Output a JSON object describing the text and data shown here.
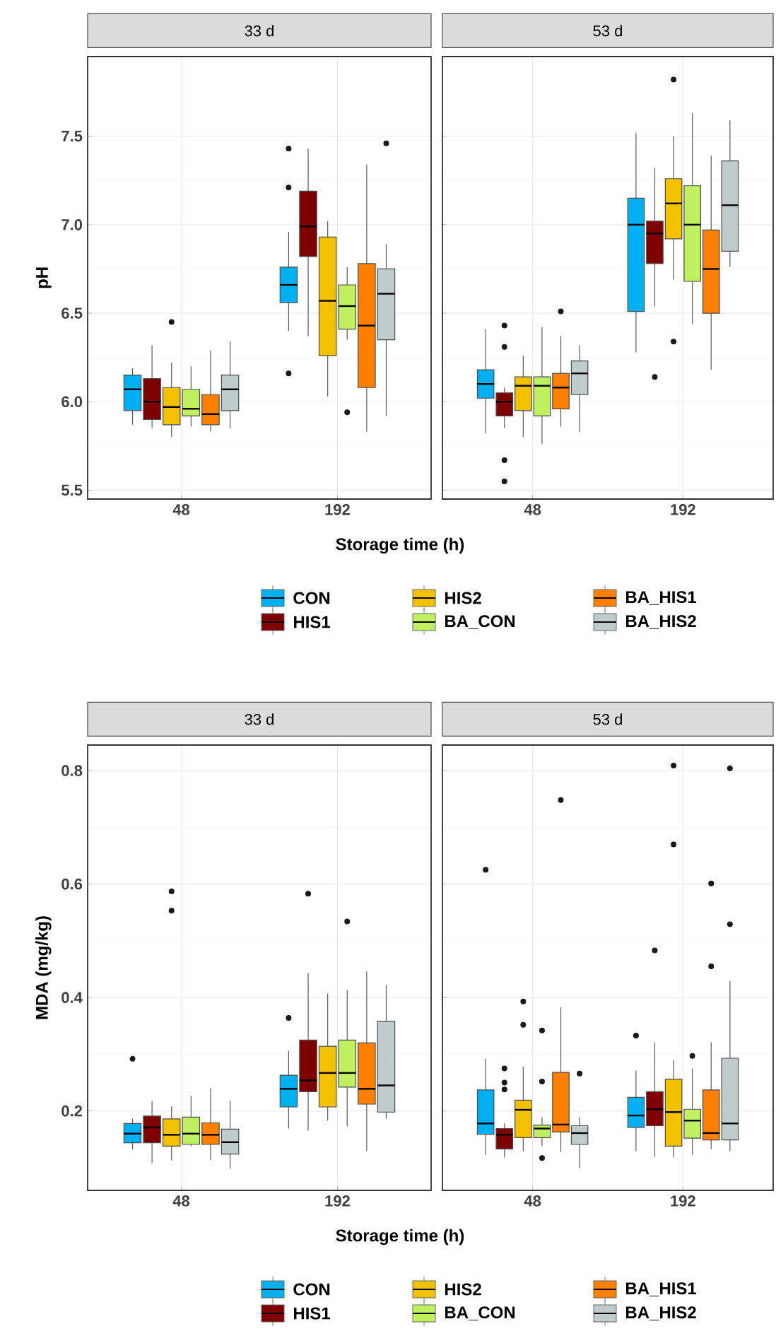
{
  "chart_data": [
    {
      "type": "box",
      "title": "33 d",
      "xlabel": "Storage time (h)",
      "ylabel": "pH",
      "categories": [
        "48",
        "192"
      ],
      "ylim": [
        5.45,
        7.95
      ],
      "yticks": [
        5.5,
        {
          "value": 6,
          "label": "6.0"
        },
        6.5,
        {
          "value": 7,
          "label": "7.0"
        },
        7.5
      ],
      "grid": true,
      "legend": "bottom",
      "series": [
        {
          "name": "CON",
          "color": "#00b0f0",
          "boxes": [
            {
              "low": 5.87,
              "q1": 5.95,
              "median": 6.07,
              "q3": 6.15,
              "high": 6.19
            },
            {
              "low": 6.4,
              "q1": 6.56,
              "median": 6.66,
              "q3": 6.76,
              "high": 6.96,
              "outliers": [
                7.43,
                7.21,
                6.16
              ]
            }
          ]
        },
        {
          "name": "HIS1",
          "color": "#7f0000",
          "boxes": [
            {
              "low": 5.85,
              "q1": 5.9,
              "median": 6.0,
              "q3": 6.13,
              "high": 6.32
            },
            {
              "low": 6.37,
              "q1": 6.82,
              "median": 6.99,
              "q3": 7.19,
              "high": 7.43
            }
          ]
        },
        {
          "name": "HIS2",
          "color": "#f2c200",
          "boxes": [
            {
              "low": 5.8,
              "q1": 5.87,
              "median": 5.97,
              "q3": 6.08,
              "high": 6.22,
              "outliers": [
                6.45
              ]
            },
            {
              "low": 6.03,
              "q1": 6.26,
              "median": 6.57,
              "q3": 6.93,
              "high": 7.02
            }
          ]
        },
        {
          "name": "BA_CON",
          "color": "#c0f060",
          "boxes": [
            {
              "low": 5.86,
              "q1": 5.92,
              "median": 5.96,
              "q3": 6.07,
              "high": 6.2
            },
            {
              "low": 6.35,
              "q1": 6.41,
              "median": 6.54,
              "q3": 6.66,
              "high": 6.76,
              "outliers": [
                5.94
              ]
            }
          ]
        },
        {
          "name": "BA_HIS1",
          "color": "#ff7f00",
          "boxes": [
            {
              "low": 5.83,
              "q1": 5.87,
              "median": 5.93,
              "q3": 6.04,
              "high": 6.29
            },
            {
              "low": 5.83,
              "q1": 6.08,
              "median": 6.43,
              "q3": 6.78,
              "high": 7.34
            }
          ]
        },
        {
          "name": "BA_HIS2",
          "color": "#c0cccc",
          "boxes": [
            {
              "low": 5.85,
              "q1": 5.95,
              "median": 6.07,
              "q3": 6.15,
              "high": 6.34
            },
            {
              "low": 5.92,
              "q1": 6.35,
              "median": 6.61,
              "q3": 6.75,
              "high": 6.89,
              "outliers": [
                7.46
              ]
            }
          ]
        }
      ]
    },
    {
      "type": "box",
      "title": "53 d",
      "categories": [
        "48",
        "192"
      ],
      "ylim": [
        5.45,
        7.95
      ],
      "yticks": [
        5.5,
        6,
        6.5,
        7,
        7.5
      ],
      "grid": true,
      "tick_labels": "x",
      "series": [
        {
          "color": "#00b0f0",
          "boxes": [
            {
              "low": 5.82,
              "q1": 6.02,
              "median": 6.1,
              "q3": 6.18,
              "high": 6.41
            },
            {
              "low": 6.28,
              "q1": 6.51,
              "median": 7.0,
              "q3": 7.15,
              "high": 7.52
            }
          ]
        },
        {
          "color": "#7f0000",
          "boxes": [
            {
              "low": 5.85,
              "q1": 5.92,
              "median": 6.0,
              "q3": 6.05,
              "high": 6.08,
              "outliers": [
                6.43,
                6.31,
                5.67,
                5.55
              ]
            },
            {
              "low": 6.54,
              "q1": 6.78,
              "median": 6.95,
              "q3": 7.02,
              "high": 7.32,
              "outliers": [
                6.14
              ]
            }
          ]
        },
        {
          "color": "#f2c200",
          "boxes": [
            {
              "low": 5.8,
              "q1": 5.95,
              "median": 6.09,
              "q3": 6.14,
              "high": 6.26
            },
            {
              "low": 6.69,
              "q1": 6.92,
              "median": 7.12,
              "q3": 7.26,
              "high": 7.5,
              "outliers": [
                7.82,
                6.34
              ]
            }
          ]
        },
        {
          "color": "#c0f060",
          "boxes": [
            {
              "low": 5.76,
              "q1": 5.92,
              "median": 6.09,
              "q3": 6.14,
              "high": 6.42
            },
            {
              "low": 6.44,
              "q1": 6.68,
              "median": 7.0,
              "q3": 7.22,
              "high": 7.63
            }
          ]
        },
        {
          "color": "#ff7f00",
          "boxes": [
            {
              "low": 5.86,
              "q1": 5.96,
              "median": 6.08,
              "q3": 6.16,
              "high": 6.37,
              "outliers": [
                6.51
              ]
            },
            {
              "low": 6.18,
              "q1": 6.5,
              "median": 6.75,
              "q3": 6.97,
              "high": 7.39
            }
          ]
        },
        {
          "color": "#c0cccc",
          "boxes": [
            {
              "low": 5.83,
              "q1": 6.04,
              "median": 6.16,
              "q3": 6.23,
              "high": 6.32
            },
            {
              "low": 6.76,
              "q1": 6.85,
              "median": 7.11,
              "q3": 7.36,
              "high": 7.59
            }
          ]
        }
      ]
    },
    {
      "type": "box",
      "title": "33 d",
      "xlabel": "Storage time (h)",
      "ylabel": "MDA (mg/kg)",
      "categories": [
        "48",
        "192"
      ],
      "ylim": [
        0.06,
        0.845
      ],
      "yticks": [
        0.2,
        0.4,
        0.6,
        0.8
      ],
      "grid": true,
      "legend": "bottom",
      "series": [
        {
          "name": "CON",
          "color": "#00b0f0",
          "boxes": [
            {
              "low": 0.132,
              "q1": 0.144,
              "median": 0.16,
              "q3": 0.178,
              "high": 0.186,
              "outliers": [
                0.292
              ]
            },
            {
              "low": 0.169,
              "q1": 0.207,
              "median": 0.239,
              "q3": 0.263,
              "high": 0.306,
              "outliers": [
                0.364
              ]
            }
          ]
        },
        {
          "name": "HIS1",
          "color": "#7f0000",
          "boxes": [
            {
              "low": 0.108,
              "q1": 0.144,
              "median": 0.171,
              "q3": 0.191,
              "high": 0.218
            },
            {
              "low": 0.166,
              "q1": 0.234,
              "median": 0.254,
              "q3": 0.325,
              "high": 0.443,
              "outliers": [
                0.583
              ]
            }
          ]
        },
        {
          "name": "HIS2",
          "color": "#f2c200",
          "boxes": [
            {
              "low": 0.113,
              "q1": 0.138,
              "median": 0.158,
              "q3": 0.186,
              "high": 0.208,
              "outliers": [
                0.587,
                0.553
              ]
            },
            {
              "low": 0.183,
              "q1": 0.207,
              "median": 0.267,
              "q3": 0.314,
              "high": 0.407
            }
          ]
        },
        {
          "name": "BA_CON",
          "color": "#c0f060",
          "boxes": [
            {
              "low": 0.138,
              "q1": 0.141,
              "median": 0.16,
              "q3": 0.189,
              "high": 0.227
            },
            {
              "low": 0.173,
              "q1": 0.242,
              "median": 0.267,
              "q3": 0.325,
              "high": 0.413,
              "outliers": [
                0.534
              ]
            }
          ]
        },
        {
          "name": "BA_HIS1",
          "color": "#ff7f00",
          "boxes": [
            {
              "low": 0.113,
              "q1": 0.141,
              "median": 0.158,
              "q3": 0.179,
              "high": 0.24
            },
            {
              "low": 0.129,
              "q1": 0.212,
              "median": 0.239,
              "q3": 0.32,
              "high": 0.446
            }
          ]
        },
        {
          "name": "BA_HIS2",
          "color": "#c0cccc",
          "boxes": [
            {
              "low": 0.098,
              "q1": 0.124,
              "median": 0.145,
              "q3": 0.168,
              "high": 0.218
            },
            {
              "low": 0.186,
              "q1": 0.198,
              "median": 0.245,
              "q3": 0.358,
              "high": 0.422
            }
          ]
        }
      ]
    },
    {
      "type": "box",
      "title": "53 d",
      "categories": [
        "48",
        "192"
      ],
      "ylim": [
        0.06,
        0.845
      ],
      "yticks": [
        0.2,
        0.4,
        0.6,
        0.8
      ],
      "grid": true,
      "tick_labels": "x",
      "series": [
        {
          "color": "#00b0f0",
          "boxes": [
            {
              "low": 0.123,
              "q1": 0.159,
              "median": 0.178,
              "q3": 0.237,
              "high": 0.292,
              "outliers": [
                0.625
              ]
            },
            {
              "low": 0.129,
              "q1": 0.171,
              "median": 0.192,
              "q3": 0.224,
              "high": 0.271,
              "outliers": [
                0.333
              ]
            }
          ]
        },
        {
          "color": "#7f0000",
          "boxes": [
            {
              "low": 0.118,
              "q1": 0.133,
              "median": 0.158,
              "q3": 0.169,
              "high": 0.178,
              "outliers": [
                0.275,
                0.25,
                0.238
              ]
            },
            {
              "low": 0.119,
              "q1": 0.174,
              "median": 0.203,
              "q3": 0.234,
              "high": 0.321,
              "outliers": [
                0.483
              ]
            }
          ]
        },
        {
          "color": "#f2c200",
          "boxes": [
            {
              "low": 0.129,
              "q1": 0.153,
              "median": 0.202,
              "q3": 0.219,
              "high": 0.278,
              "outliers": [
                0.393,
                0.352
              ]
            },
            {
              "low": 0.118,
              "q1": 0.138,
              "median": 0.198,
              "q3": 0.256,
              "high": 0.29,
              "outliers": [
                0.809,
                0.67
              ]
            }
          ]
        },
        {
          "color": "#c0f060",
          "boxes": [
            {
              "low": 0.138,
              "q1": 0.153,
              "median": 0.169,
              "q3": 0.175,
              "high": 0.189,
              "outliers": [
                0.342,
                0.252,
                0.117
              ]
            },
            {
              "low": 0.123,
              "q1": 0.152,
              "median": 0.183,
              "q3": 0.203,
              "high": 0.275,
              "outliers": [
                0.297
              ]
            }
          ]
        },
        {
          "color": "#ff7f00",
          "boxes": [
            {
              "low": 0.128,
              "q1": 0.163,
              "median": 0.176,
              "q3": 0.268,
              "high": 0.383,
              "outliers": [
                0.748
              ]
            },
            {
              "low": 0.133,
              "q1": 0.149,
              "median": 0.161,
              "q3": 0.237,
              "high": 0.321,
              "outliers": [
                0.601,
                0.455
              ]
            }
          ]
        },
        {
          "color": "#c0cccc",
          "boxes": [
            {
              "low": 0.1,
              "q1": 0.141,
              "median": 0.161,
              "q3": 0.174,
              "high": 0.189,
              "outliers": [
                0.266
              ]
            },
            {
              "low": 0.129,
              "q1": 0.149,
              "median": 0.178,
              "q3": 0.293,
              "high": 0.429,
              "outliers": [
                0.804,
                0.529
              ]
            }
          ]
        }
      ]
    }
  ]
}
